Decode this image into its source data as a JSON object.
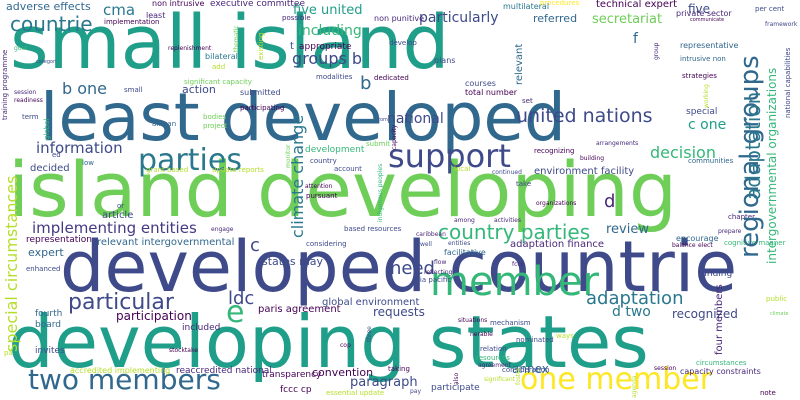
{
  "words": [
    {
      "text": "small island",
      "color": "#1f9e89"
    },
    {
      "text": "least developed",
      "color": "#31688e"
    },
    {
      "text": "island developing",
      "color": "#6ece58"
    },
    {
      "text": "developed countrie",
      "color": "#3e4a89"
    },
    {
      "text": "developing states",
      "color": "#1f9e89"
    },
    {
      "text": "member",
      "color": "#35b779"
    },
    {
      "text": "support",
      "color": "#3e4a89"
    },
    {
      "text": "parties",
      "color": "#2a788e"
    },
    {
      "text": "one member",
      "color": "#fde725"
    },
    {
      "text": "two members",
      "color": "#31688e"
    },
    {
      "text": "country parties",
      "color": "#35b779"
    },
    {
      "text": "united nations",
      "color": "#3e4a89"
    },
    {
      "text": "regional groups",
      "color": "#31688e"
    },
    {
      "text": "adaptation",
      "color": "#2a788e"
    },
    {
      "text": "nations regional",
      "color": "#2a788e"
    },
    {
      "text": "particular",
      "color": "#3e4a89"
    },
    {
      "text": "implementing entities",
      "color": "#443983"
    },
    {
      "text": "special circumstances",
      "color": "#b5de2b"
    },
    {
      "text": "countrie",
      "color": "#2a788e"
    },
    {
      "text": "information",
      "color": "#3e4a89"
    },
    {
      "text": "decision",
      "color": "#35b779"
    },
    {
      "text": "climate change",
      "color": "#2a788e"
    },
    {
      "text": "ldc",
      "color": "#3e4a89"
    },
    {
      "text": "need",
      "color": "#3e4a89"
    },
    {
      "text": "e",
      "color": "#35b779"
    },
    {
      "text": "c one",
      "color": "#1f9e89"
    },
    {
      "text": "b one",
      "color": "#31688e"
    },
    {
      "text": "national",
      "color": "#3e4a89"
    },
    {
      "text": "groups b",
      "color": "#3e4a89"
    },
    {
      "text": "including",
      "color": "#35b779"
    },
    {
      "text": "five united",
      "color": "#1f9e89"
    },
    {
      "text": "particularly",
      "color": "#3e4a89"
    },
    {
      "text": "secretariat",
      "color": "#6ece58"
    },
    {
      "text": "cma",
      "color": "#2a788e"
    },
    {
      "text": "adverse effects",
      "color": "#31688e"
    },
    {
      "text": "paragraph",
      "color": "#3e4a89"
    },
    {
      "text": "convention",
      "color": "#440154"
    },
    {
      "text": "annex",
      "color": "#31688e"
    },
    {
      "text": "review",
      "color": "#31688e"
    },
    {
      "text": "requests",
      "color": "#3e4a89"
    },
    {
      "text": "participation",
      "color": "#440154"
    },
    {
      "text": "recognized",
      "color": "#3e4a89"
    },
    {
      "text": "d two",
      "color": "#2a788e"
    },
    {
      "text": "technical expert",
      "color": "#440154"
    },
    {
      "text": "referred",
      "color": "#31688e"
    },
    {
      "text": "action",
      "color": "#3e4a89"
    },
    {
      "text": "development",
      "color": "#35b779"
    },
    {
      "text": "states may",
      "color": "#3e4a89"
    },
    {
      "text": "article",
      "color": "#3e4a89"
    },
    {
      "text": "relevant intergovernmental",
      "color": "#31688e"
    },
    {
      "text": "environment facility",
      "color": "#3e4a89"
    },
    {
      "text": "adaptation finance",
      "color": "#482878"
    },
    {
      "text": "global environment",
      "color": "#3e4a89"
    },
    {
      "text": "paris agreement",
      "color": "#440154"
    },
    {
      "text": "transparency",
      "color": "#440154"
    },
    {
      "text": "executive committee",
      "color": "#482878"
    },
    {
      "text": "decided",
      "color": "#3e4a89"
    },
    {
      "text": "expert",
      "color": "#31688e"
    },
    {
      "text": "representation",
      "color": "#440154"
    },
    {
      "text": "fourth",
      "color": "#31688e"
    },
    {
      "text": "board",
      "color": "#31688e"
    },
    {
      "text": "invites",
      "color": "#3e4a89"
    },
    {
      "text": "fccc cp",
      "color": "#440154"
    },
    {
      "text": "reaccredited national",
      "color": "#482878"
    },
    {
      "text": "accredited implementing",
      "color": "#b5de2b"
    },
    {
      "text": "included",
      "color": "#482878"
    },
    {
      "text": "intergovernmental organizations",
      "color": "#35b779"
    },
    {
      "text": "five",
      "color": "#3e4a89"
    },
    {
      "text": "four members",
      "color": "#482878"
    },
    {
      "text": "funding",
      "color": "#3e4a89"
    },
    {
      "text": "relevant",
      "color": "#31688e"
    },
    {
      "text": "d",
      "color": "#482878"
    },
    {
      "text": "c",
      "color": "#3e4a89"
    },
    {
      "text": "b",
      "color": "#31688e"
    },
    {
      "text": "f",
      "color": "#31688e"
    },
    {
      "text": "procedures",
      "color": "#fde725"
    },
    {
      "text": "multilateral",
      "color": "#2a788e"
    },
    {
      "text": "possible",
      "color": "#482878"
    },
    {
      "text": "non punitive",
      "color": "#482878"
    },
    {
      "text": "non intrusive",
      "color": "#440154"
    },
    {
      "text": "least",
      "color": "#482878"
    },
    {
      "text": "implementation",
      "color": "#440154"
    },
    {
      "text": "training programme",
      "color": "#482878"
    },
    {
      "text": "goal",
      "color": "#35b779"
    },
    {
      "text": "bilateral",
      "color": "#2a788e"
    },
    {
      "text": "appropriate",
      "color": "#440154"
    },
    {
      "text": "t",
      "color": "#3e4a89"
    },
    {
      "text": "develop",
      "color": "#3e4a89"
    },
    {
      "text": "plans",
      "color": "#3e4a89"
    },
    {
      "text": "private sector",
      "color": "#482878"
    },
    {
      "text": "per cent",
      "color": "#3e4a89"
    },
    {
      "text": "representative",
      "color": "#31688e"
    },
    {
      "text": "intrusive non",
      "color": "#31688e"
    },
    {
      "text": "strategies",
      "color": "#440154"
    },
    {
      "text": "national capabilities",
      "color": "#3e4a89"
    },
    {
      "text": "framework",
      "color": "#3e4a89"
    },
    {
      "text": "courses",
      "color": "#3e4a89"
    },
    {
      "text": "total number",
      "color": "#440154"
    },
    {
      "text": "modalities",
      "color": "#3e4a89"
    },
    {
      "text": "dedicated",
      "color": "#440154"
    },
    {
      "text": "submitted",
      "color": "#3e4a89"
    },
    {
      "text": "significant capacity",
      "color": "#6ece58"
    },
    {
      "text": "participating",
      "color": "#440154"
    },
    {
      "text": "bodies",
      "color": "#6ece58"
    },
    {
      "text": "project",
      "color": "#6ece58"
    },
    {
      "text": "african",
      "color": "#31688e"
    },
    {
      "text": "small",
      "color": "#3e4a89"
    },
    {
      "text": "special",
      "color": "#3e4a89"
    },
    {
      "text": "set",
      "color": "#482878"
    },
    {
      "text": "recognizing",
      "color": "#440154"
    },
    {
      "text": "building",
      "color": "#440154"
    },
    {
      "text": "arrangements",
      "color": "#482878"
    },
    {
      "text": "communities",
      "color": "#31688e"
    },
    {
      "text": "submit",
      "color": "#6ece58"
    },
    {
      "text": "country",
      "color": "#3e4a89"
    },
    {
      "text": "account",
      "color": "#3e4a89"
    },
    {
      "text": "local",
      "color": "#b5de2b"
    },
    {
      "text": "continued",
      "color": "#3e4a89"
    },
    {
      "text": "take",
      "color": "#3e4a89"
    },
    {
      "text": "update reports",
      "color": "#b5de2b"
    },
    {
      "text": "grant based",
      "color": "#b5de2b"
    },
    {
      "text": "based resources",
      "color": "#3e4a89"
    },
    {
      "text": "considering",
      "color": "#3e4a89"
    },
    {
      "text": "entities",
      "color": "#3e4a89"
    },
    {
      "text": "well",
      "color": "#3e4a89"
    },
    {
      "text": "encourage",
      "color": "#31688e"
    },
    {
      "text": "balance",
      "color": "#440154"
    },
    {
      "text": "elect",
      "color": "#440154"
    },
    {
      "text": "cognitive manner",
      "color": "#35b779"
    },
    {
      "text": "chapter",
      "color": "#482878"
    },
    {
      "text": "prepare",
      "color": "#482878"
    },
    {
      "text": "organizations",
      "color": "#440154"
    },
    {
      "text": "activities",
      "color": "#482878"
    },
    {
      "text": "among",
      "color": "#482878"
    },
    {
      "text": "flow",
      "color": "#482878"
    },
    {
      "text": "fccc",
      "color": "#482878"
    },
    {
      "text": "facilitative",
      "color": "#31688e"
    },
    {
      "text": "reflecting",
      "color": "#482878"
    },
    {
      "text": "asia pacific",
      "color": "#3e4a89"
    },
    {
      "text": "caribbean",
      "color": "#482878"
    },
    {
      "text": "enhanced",
      "color": "#3e4a89"
    },
    {
      "text": "engage",
      "color": "#482878"
    },
    {
      "text": "attention",
      "color": "#440154"
    },
    {
      "text": "pursuant",
      "color": "#440154"
    },
    {
      "text": "stocktake",
      "color": "#440154"
    },
    {
      "text": "cop",
      "color": "#440154"
    },
    {
      "text": "taking",
      "color": "#440154"
    },
    {
      "text": "essential update",
      "color": "#b5de2b"
    },
    {
      "text": "pay",
      "color": "#3e4a89"
    },
    {
      "text": "participate",
      "color": "#3e4a89"
    },
    {
      "text": "significant",
      "color": "#b5de2b"
    },
    {
      "text": "nominated",
      "color": "#3e4a89"
    },
    {
      "text": "mechanism",
      "color": "#3e4a89"
    },
    {
      "text": "situations",
      "color": "#440154"
    },
    {
      "text": "relation",
      "color": "#3e4a89"
    },
    {
      "text": "resources",
      "color": "#35b779"
    },
    {
      "text": "consideration",
      "color": "#3e4a89"
    },
    {
      "text": "nerable",
      "color": "#440154"
    },
    {
      "text": "agreement",
      "color": "#482878"
    },
    {
      "text": "circumstances",
      "color": "#35b779"
    },
    {
      "text": "session",
      "color": "#440154"
    },
    {
      "text": "ways",
      "color": "#b5de2b"
    },
    {
      "text": "capacity constraints",
      "color": "#482878"
    },
    {
      "text": "note",
      "color": "#440154"
    },
    {
      "text": "public",
      "color": "#b5de2b"
    },
    {
      "text": "climate",
      "color": "#6ece58"
    },
    {
      "text": "ed",
      "color": "#3e4a89"
    },
    {
      "text": "low",
      "color": "#31688e"
    },
    {
      "text": "term",
      "color": "#3e4a89"
    },
    {
      "text": "global",
      "color": "#35b779"
    },
    {
      "text": "session",
      "color": "#482878"
    },
    {
      "text": "readiness",
      "color": "#440154"
    },
    {
      "text": "categori",
      "color": "#3e4a89"
    },
    {
      "text": "add",
      "color": "#b5de2b"
    },
    {
      "text": "pa",
      "color": "#b5de2b"
    },
    {
      "text": "rom",
      "color": "#3e4a89"
    },
    {
      "text": "or",
      "color": "#3e4a89"
    },
    {
      "text": "replenishment",
      "color": "#440154"
    },
    {
      "text": "communicate",
      "color": "#440154"
    },
    {
      "text": "capacity",
      "color": "#440154"
    },
    {
      "text": "existing",
      "color": "#b5de2b"
    },
    {
      "text": "group",
      "color": "#482878"
    },
    {
      "text": "indigenous peoples",
      "color": "#35b779"
    },
    {
      "text": "monitor",
      "color": "#6ece58"
    },
    {
      "text": "thematic",
      "color": "#6ece58"
    },
    {
      "text": "foster",
      "color": "#b5de2b"
    },
    {
      "text": "working",
      "color": "#b5de2b"
    },
    {
      "text": "also",
      "color": "#440154"
    },
    {
      "text": "agenda",
      "color": "#b5de2b"
    },
    {
      "text": "three",
      "color": "#3e4a89"
    }
  ]
}
